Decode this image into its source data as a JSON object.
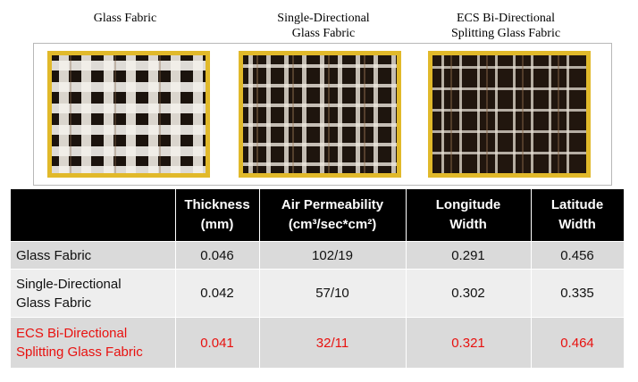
{
  "captions": {
    "glass": "Glass Fabric",
    "single_line1": "Single-Directional",
    "single_line2": "Glass Fabric",
    "ecs_line1": "ECS Bi-Directional",
    "ecs_line2": "Splitting Glass Fabric"
  },
  "colors": {
    "frame_gold": "#e1b92a",
    "header_bg": "#000000",
    "row_dark": "#dadada",
    "row_light": "#eeeeee",
    "highlight_red": "#e8110f"
  },
  "table": {
    "headers": [
      {
        "line1": "",
        "line2": ""
      },
      {
        "line1": "Thickness",
        "line2": "(mm)"
      },
      {
        "line1": "Air Permeability",
        "line2": "(cm³/sec*cm²)"
      },
      {
        "line1": "Longitude",
        "line2": "Width"
      },
      {
        "line1": "Latitude",
        "line2": "Width"
      }
    ],
    "rows": [
      {
        "label1": "Glass Fabric",
        "label2": "",
        "thickness": "0.046",
        "air": "102/19",
        "longitude": "0.291",
        "latitude": "0.456"
      },
      {
        "label1": "Single-Directional",
        "label2": "Glass Fabric",
        "thickness": "0.042",
        "air": "57/10",
        "longitude": "0.302",
        "latitude": "0.335"
      },
      {
        "label1": "ECS Bi-Directional",
        "label2": "Splitting Glass Fabric",
        "thickness": "0.041",
        "air": "32/11",
        "longitude": "0.321",
        "latitude": "0.464"
      }
    ]
  }
}
